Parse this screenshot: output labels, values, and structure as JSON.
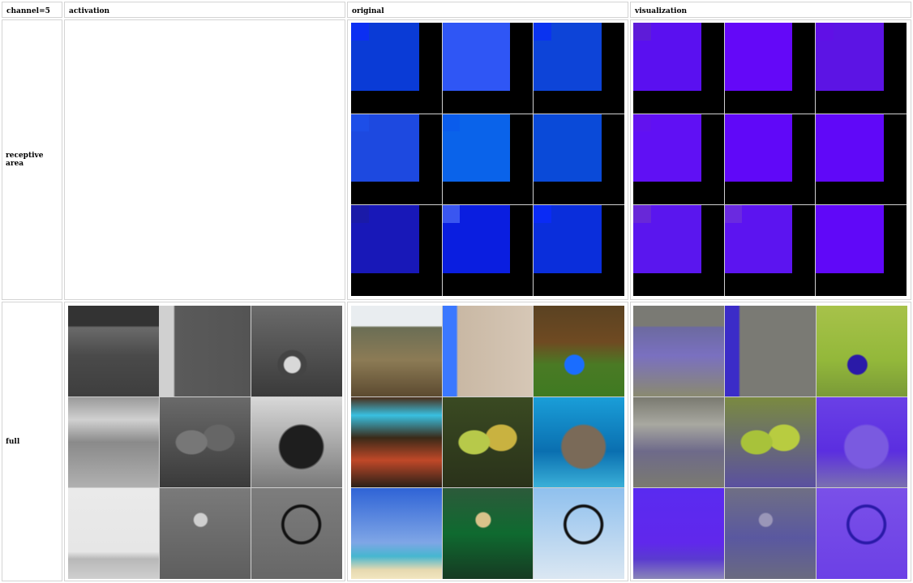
{
  "header": {
    "corner": "channel=5",
    "col_activation": "activation",
    "col_original": "original",
    "col_visualization": "visualization"
  },
  "rows": {
    "receptive": "receptive area",
    "full": "full"
  },
  "receptive_original": [
    {
      "name": "rf-orig-1",
      "base": "#0a3bd6",
      "tl": "#0b2ff2"
    },
    {
      "name": "rf-orig-2",
      "base": "#2f56f5",
      "tl": "#2f56f5"
    },
    {
      "name": "rf-orig-3",
      "base": "#0d44d8",
      "tl": "#0a33f0"
    },
    {
      "name": "rf-orig-4",
      "base": "#1d49e0",
      "tl": "#1d4ee8"
    },
    {
      "name": "rf-orig-5",
      "base": "#0a63ea",
      "tl": "#0a5cec"
    },
    {
      "name": "rf-orig-6",
      "base": "#0a4ad8",
      "tl": "#0a4ad8"
    },
    {
      "name": "rf-orig-7",
      "base": "#1818b8",
      "tl": "#1a1aa8"
    },
    {
      "name": "rf-orig-8",
      "base": "#0a1ee0",
      "tl": "#3a56f0"
    },
    {
      "name": "rf-orig-9",
      "base": "#0a2edb",
      "tl": "#0a2bf5"
    }
  ],
  "receptive_visualization": [
    {
      "name": "rf-vis-1",
      "base": "#5a10f0",
      "tl": "#5e1cd8"
    },
    {
      "name": "rf-vis-2",
      "base": "#6408f8",
      "tl": "#6408f8"
    },
    {
      "name": "rf-vis-3",
      "base": "#5c14e4",
      "tl": "#6010e6"
    },
    {
      "name": "rf-vis-4",
      "base": "#6010f4",
      "tl": "#6212ee"
    },
    {
      "name": "rf-vis-5",
      "base": "#6008f8",
      "tl": "#6008f8"
    },
    {
      "name": "rf-vis-6",
      "base": "#6008f8",
      "tl": "#6008f8"
    },
    {
      "name": "rf-vis-7",
      "base": "#5a16ee",
      "tl": "#6828d8"
    },
    {
      "name": "rf-vis-8",
      "base": "#5c14f0",
      "tl": "#6a2ae0"
    },
    {
      "name": "rf-vis-9",
      "base": "#6008f8",
      "tl": "#6008f8"
    }
  ],
  "full_activation": [
    {
      "name": "act-dogs",
      "bg": "linear-gradient(180deg,#333 0%,#333 22%,#6a6a6a 24%,#4a4a4a 55%,#3e3e3e 100%)"
    },
    {
      "name": "act-oscilloscope",
      "bg": "linear-gradient(90deg,#d0d0d0 0%,#d0d0d0 15%,#5a5a5a 17%,#545454 100%)"
    },
    {
      "name": "act-barrels",
      "bg": "radial-gradient(circle at 45% 65%,#d8d8d8 0 10%,#444 12% 18%,transparent 20%), linear-gradient(180deg,#6a6a6a,#3a3a3a)"
    },
    {
      "name": "act-casino",
      "bg": "linear-gradient(180deg,#9a9a9a 0%,#d0d0d0 25%,#8a8a8a 50%,#b0b0b0 100%)"
    },
    {
      "name": "act-fruits",
      "bg": "radial-gradient(ellipse at 35% 50%,#777 0 18%,transparent 20%), radial-gradient(ellipse at 65% 45%,#666 0 18%,transparent 20%), linear-gradient(180deg,#6a6a6a,#3a3a3a)"
    },
    {
      "name": "act-manatee",
      "bg": "radial-gradient(ellipse at 55% 55%,#1e1e1e 0 30%,transparent 33%), linear-gradient(180deg,#d8d8d8,#7a7a7a)"
    },
    {
      "name": "act-sailboat",
      "bg": "linear-gradient(180deg,#eaeaea 0%,#e6e6e6 70%,#b8b8b8 78%,#cfcfcf 100%)"
    },
    {
      "name": "act-frog",
      "bg": "radial-gradient(circle at 45% 35%,#cfcfcf 0 8%,transparent 10%), linear-gradient(180deg,#7a7a7a,#5e5e5e)"
    },
    {
      "name": "act-pole",
      "bg": "radial-gradient(circle at 55% 40%,transparent 0 22%,#111 24% 26%,transparent 28%), linear-gradient(180deg,#7d7d7d,#676767)"
    }
  ],
  "full_original": [
    {
      "name": "orig-dogs",
      "bg": "linear-gradient(180deg,#e9edf0 0%,#e9edf0 22%,#6b6e55 24%,#8c7b55 60%,#5c4a30 100%)"
    },
    {
      "name": "orig-oscilloscope",
      "bg": "linear-gradient(90deg,#3b78ff 0%,#3b78ff 15%,#c9b8a4 17%,#d6c7b6 100%)"
    },
    {
      "name": "orig-barrels",
      "bg": "radial-gradient(circle at 45% 65%,#1a6dff 0 12%,transparent 14%), linear-gradient(180deg,#5a4222 0%,#6f4a22 40%,#4a7a24 65%,#3f7a22 100%)"
    },
    {
      "name": "orig-casino",
      "bg": "linear-gradient(180deg,#4a2e1a 0%,#39c0e0 20%,#3a2a18 45%,#c04828 70%,#2a2018 100%)"
    },
    {
      "name": "orig-fruits",
      "bg": "radial-gradient(ellipse at 35% 50%,#b7c94a 0 18%,transparent 20%), radial-gradient(ellipse at 65% 45%,#c9b240 0 18%,transparent 20%), linear-gradient(180deg,#3a4a22,#2a321a)"
    },
    {
      "name": "orig-manatee",
      "bg": "radial-gradient(ellipse at 55% 55%,#7a6a58 0 30%,transparent 33%), linear-gradient(180deg,#1a9ed8,#0a6fb0 60%,#3ab0d8)"
    },
    {
      "name": "orig-sailboat",
      "bg": "linear-gradient(180deg,#2f63d6 0%,#7fa6e6 60%,#46b6d0 75%,#e6d9b0 90%,#f2e6c0 100%)"
    },
    {
      "name": "orig-frog",
      "bg": "radial-gradient(circle at 45% 35%,#d8c28a 0 9%,transparent 11%), linear-gradient(180deg,#2c5a3a,#0f6a30 50%,#163a22)"
    },
    {
      "name": "orig-pole",
      "bg": "radial-gradient(circle at 55% 40%,transparent 0 22%,#111 24% 26%,transparent 28%), linear-gradient(180deg,#8fc0ee,#dbe7f2)"
    }
  ],
  "full_visualization": [
    {
      "name": "vis-dogs",
      "bg": "linear-gradient(180deg,#7a7a74 0%,#7a7a74 22%,#6c6aa0 24%,#7a70c0 55%,#8a8a70 100%)"
    },
    {
      "name": "vis-oscilloscope",
      "bg": "linear-gradient(90deg,#3b2cc8 0%,#3b2cc8 15%,#7a7a74 17%,#7a7a74 100%)"
    },
    {
      "name": "vis-barrels",
      "bg": "radial-gradient(circle at 45% 65%,#2a1aa8 0 12%,transparent 14%), linear-gradient(180deg,#a7c24a,#93b83a 60%,#7a9a38)"
    },
    {
      "name": "vis-casino",
      "bg": "linear-gradient(180deg,#7a7a70 0%,#a8a8a0 30%,#6e6a8a 60%,#7a7a70 100%)"
    },
    {
      "name": "vis-fruits",
      "bg": "radial-gradient(ellipse at 35% 50%,#a8c23a 0 18%,transparent 20%), radial-gradient(ellipse at 65% 45%,#b8cc40 0 18%,transparent 20%), linear-gradient(180deg,#7a8a40,#5a50a0)"
    },
    {
      "name": "vis-manatee",
      "bg": "radial-gradient(ellipse at 55% 55%,#7a5ae0 0 30%,transparent 33%), linear-gradient(180deg,#6a40e6,#5b2ee0 60%,#7a70b0)"
    },
    {
      "name": "vis-sailboat",
      "bg": "linear-gradient(180deg,#5a2af0 0%,#6028ec 60%,#5a3ad0 78%,#8a86b8 100%)"
    },
    {
      "name": "vis-frog",
      "bg": "radial-gradient(circle at 45% 35%,#9a96b8 0 8%,transparent 10%), linear-gradient(180deg,#6f6f84,#5a58a0 55%,#6a6a80)"
    },
    {
      "name": "vis-pole",
      "bg": "radial-gradient(circle at 55% 40%,transparent 0 22%,#2a1aa8 24% 26%,transparent 28%), linear-gradient(180deg,#7a50e8,#6c40e6)"
    }
  ]
}
